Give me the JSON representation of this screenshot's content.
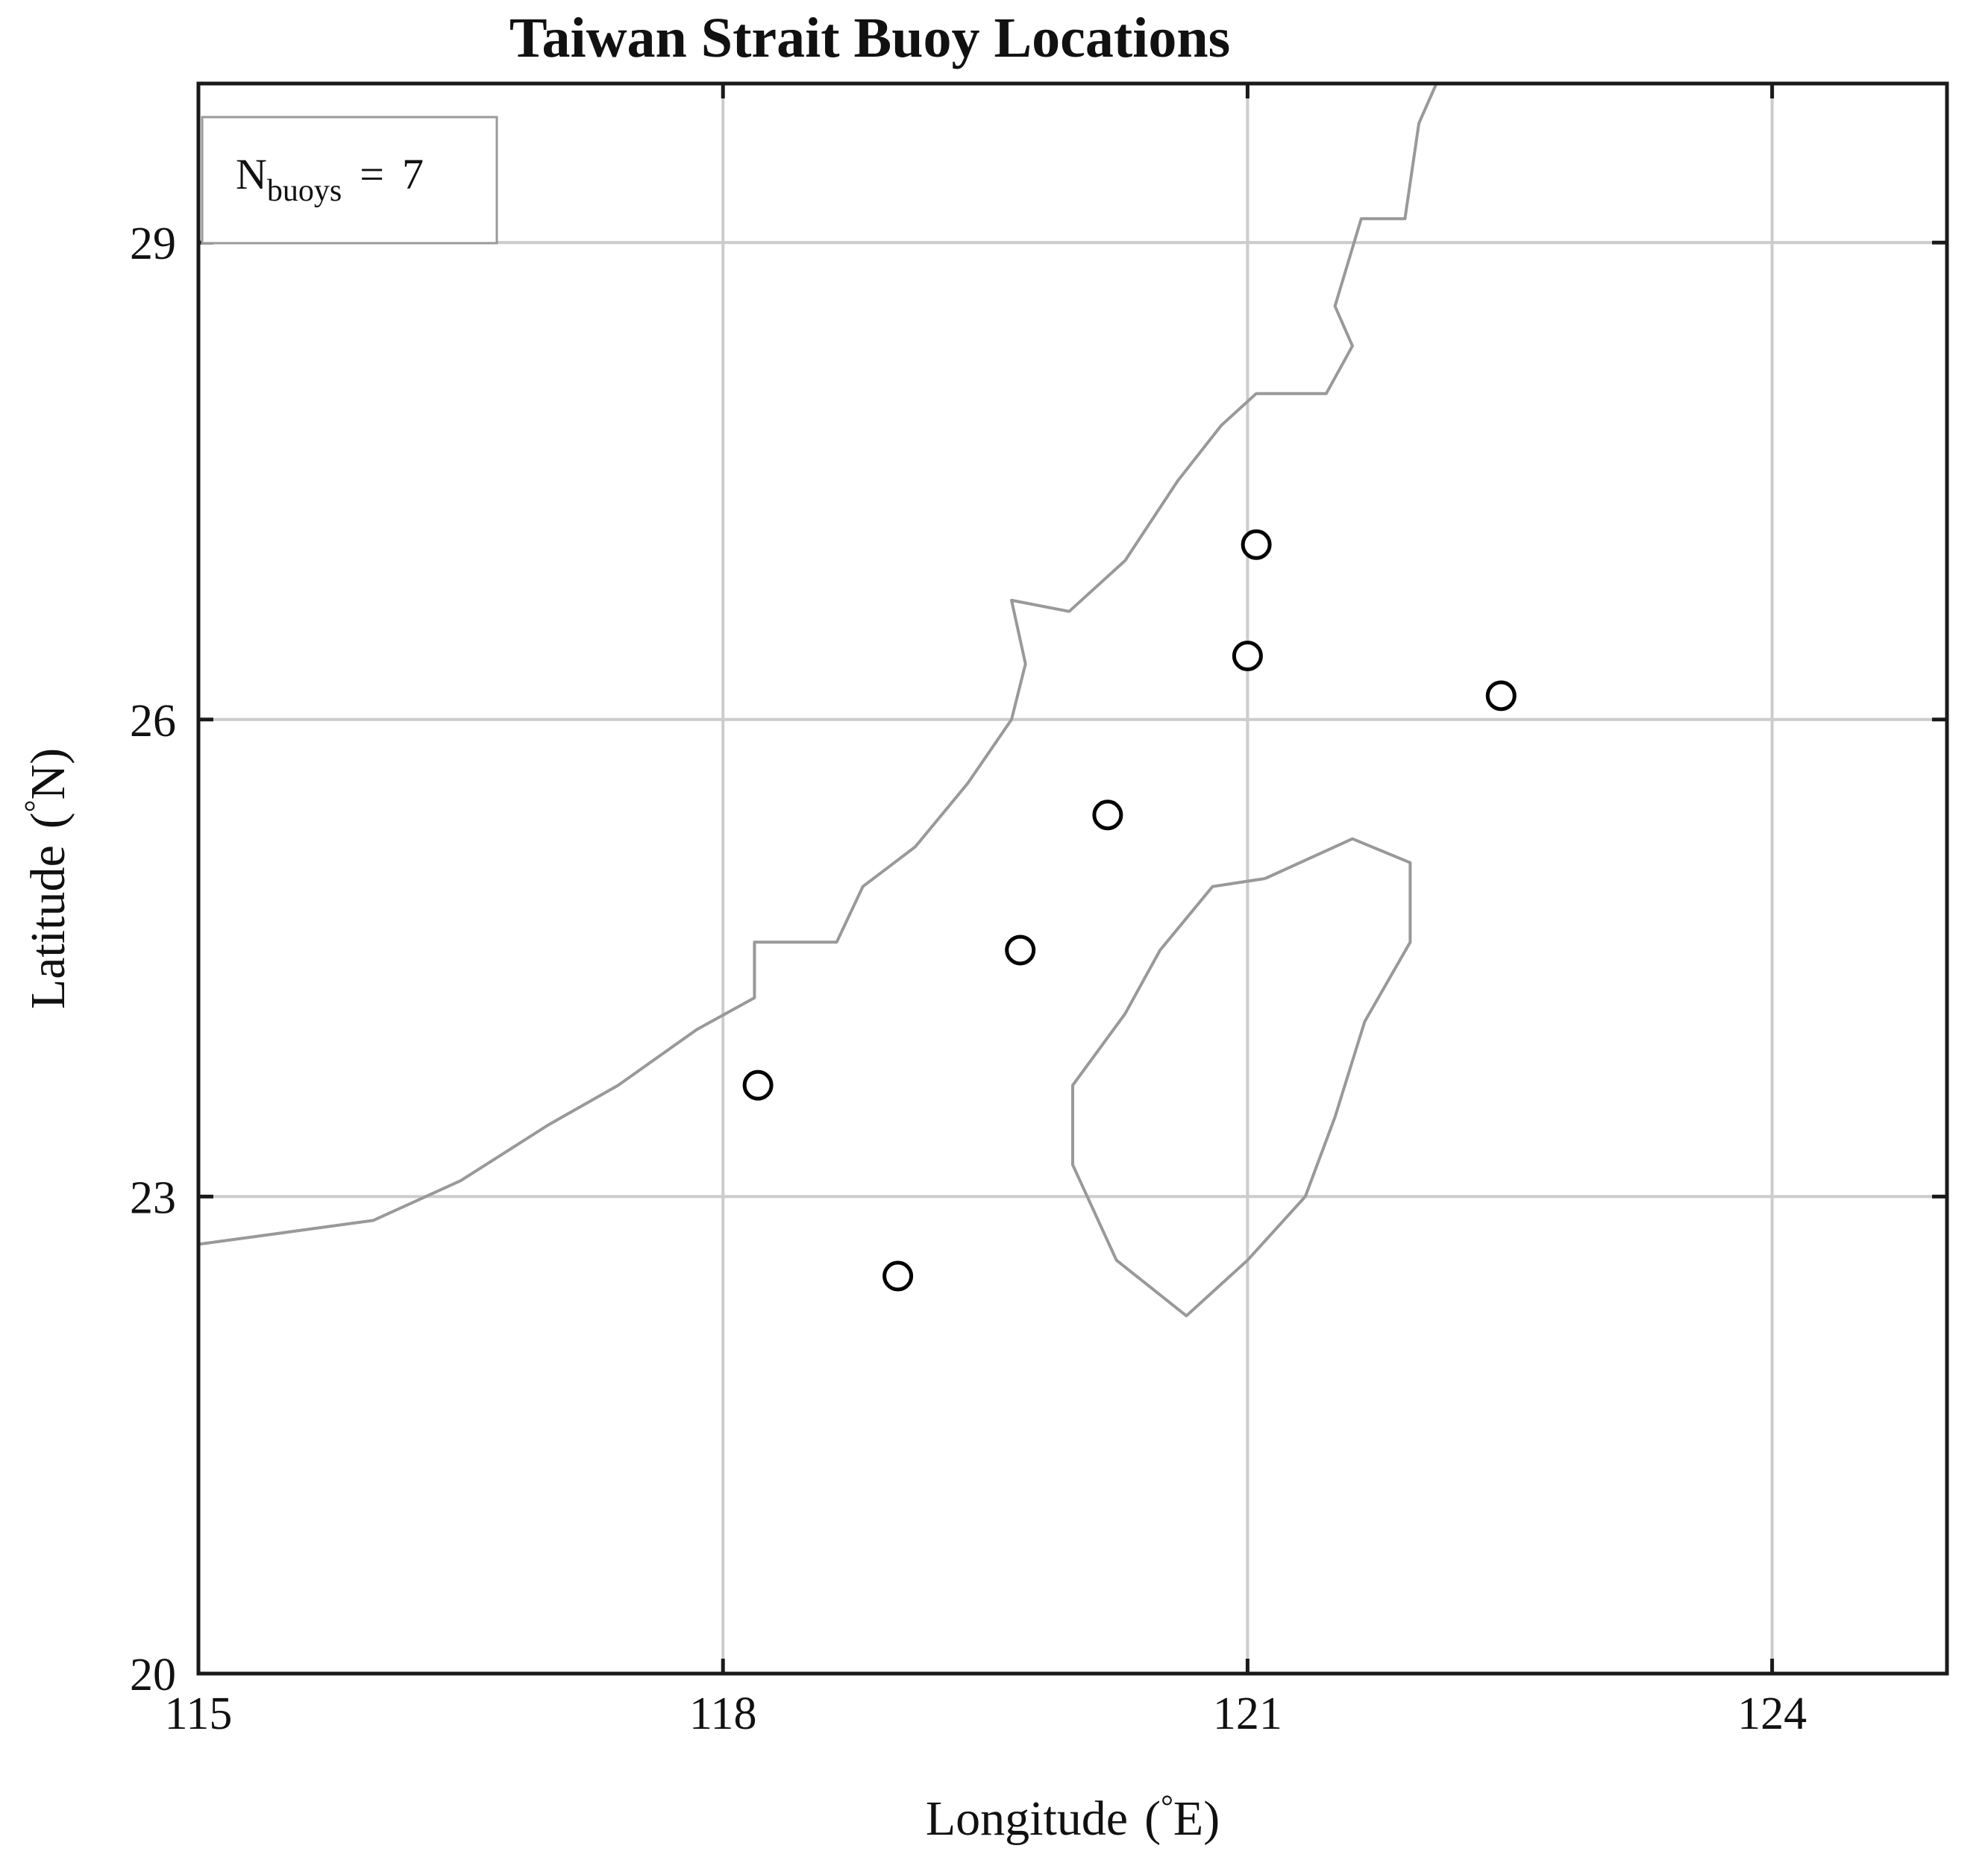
{
  "chart_data": {
    "type": "scatter",
    "title": "Taiwan Strait Buoy Locations",
    "xlabel": "Longitude (°E)",
    "xlabel_main": "Longitude",
    "xlabel_open": "(",
    "xlabel_deg": "°",
    "xlabel_unit": "E)",
    "ylabel": "Latitude (°N)",
    "ylabel_main": "Latitude",
    "ylabel_open": "(",
    "ylabel_deg": "°",
    "ylabel_unit": "N)",
    "xlim": [
      115,
      125
    ],
    "ylim": [
      20,
      30
    ],
    "xticks": [
      115,
      118,
      121,
      124
    ],
    "yticks": [
      20,
      23,
      26,
      29
    ],
    "grid": true,
    "legend": {
      "placement": "top-left",
      "symbol": "N",
      "subscript": "buoys",
      "equals": "=",
      "count": "7"
    },
    "buoys": {
      "x": [
        121.05,
        121.0,
        122.45,
        120.2,
        119.7,
        118.2,
        119.0
      ],
      "y": [
        27.1,
        26.4,
        26.15,
        25.4,
        24.55,
        23.7,
        22.5
      ]
    },
    "coastline_mainland": {
      "lon": [
        115.0,
        116.0,
        116.5,
        117.0,
        117.4,
        117.85,
        118.18,
        118.18,
        118.65,
        118.8,
        119.1,
        119.4,
        119.65,
        119.73,
        119.65,
        119.98,
        120.3,
        120.6,
        120.85,
        121.05,
        121.45,
        121.6,
        121.5,
        121.65,
        121.9,
        121.98,
        122.08
      ],
      "lat": [
        22.7,
        22.85,
        23.1,
        23.45,
        23.7,
        24.05,
        24.25,
        24.6,
        24.6,
        24.95,
        25.2,
        25.6,
        26.0,
        26.35,
        26.75,
        26.68,
        27.0,
        27.5,
        27.85,
        28.05,
        28.05,
        28.35,
        28.6,
        29.15,
        29.15,
        29.75,
        30.0
      ]
    },
    "coastline_taiwan": {
      "lon": [
        121.1,
        121.6,
        121.93,
        121.93,
        121.67,
        121.5,
        121.33,
        121.0,
        120.65,
        120.25,
        120.0,
        120.0,
        120.3,
        120.5,
        120.8,
        121.1
      ],
      "lat": [
        25.0,
        25.25,
        25.1,
        24.6,
        24.1,
        23.5,
        23.0,
        22.6,
        22.25,
        22.6,
        23.2,
        23.7,
        24.15,
        24.55,
        24.95,
        25.0
      ]
    }
  }
}
